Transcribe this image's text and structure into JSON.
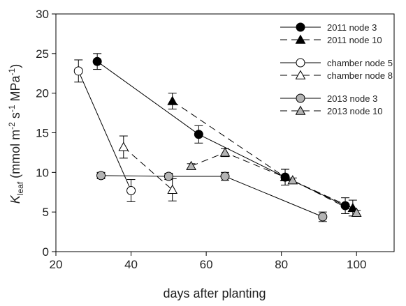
{
  "chart_data": {
    "type": "scatter",
    "title": "",
    "xlabel": "days after planting",
    "ylabel": {
      "italic": "K",
      "sub": "leaf",
      "rest": " (mmol m",
      "exp1": "-2",
      "mid1": " s",
      "exp2": "-1",
      "mid2": " MPa",
      "exp3": "-1",
      "end": ")"
    },
    "xlim": [
      20,
      110
    ],
    "ylim": [
      0,
      30
    ],
    "xticks": [
      20,
      40,
      60,
      80,
      100
    ],
    "yticks": [
      0,
      5,
      10,
      15,
      20,
      25,
      30
    ],
    "grid": false,
    "legend_position": "top-right",
    "series": [
      {
        "name": "2011 node 3",
        "marker": "circle",
        "fill": "#000000",
        "line": "solid",
        "points": [
          {
            "x": 31,
            "y": 24.0,
            "err": 1.0
          },
          {
            "x": 58,
            "y": 14.8,
            "err": 1.1
          },
          {
            "x": 81,
            "y": 9.4,
            "err": 1.0
          },
          {
            "x": 97,
            "y": 5.8,
            "err": 1.0
          }
        ]
      },
      {
        "name": "2011 node 10",
        "marker": "triangle",
        "fill": "#000000",
        "line": "dashed",
        "points": [
          {
            "x": 51,
            "y": 19.0,
            "err": 1.0
          },
          {
            "x": 81,
            "y": 9.4,
            "err": 1.0
          },
          {
            "x": 99,
            "y": 5.5,
            "err": 1.0
          }
        ]
      },
      {
        "name": "chamber node 5",
        "marker": "circle",
        "fill": "#ffffff",
        "line": "solid",
        "points": [
          {
            "x": 26,
            "y": 22.8,
            "err": 1.4
          },
          {
            "x": 40,
            "y": 7.7,
            "err": 1.4
          }
        ]
      },
      {
        "name": "chamber node 8",
        "marker": "triangle",
        "fill": "#ffffff",
        "line": "dashed",
        "points": [
          {
            "x": 38,
            "y": 13.2,
            "err": 1.4
          },
          {
            "x": 51,
            "y": 7.8,
            "err": 1.4
          }
        ]
      },
      {
        "name": "2013 node 3",
        "marker": "circle",
        "fill": "#b4b4b4",
        "line": "solid",
        "points": [
          {
            "x": 32,
            "y": 9.6,
            "err": 0.4
          },
          {
            "x": 50,
            "y": 9.5,
            "err": 0.4
          },
          {
            "x": 65,
            "y": 9.5,
            "err": 0.5
          },
          {
            "x": 91,
            "y": 4.4,
            "err": 0.6
          }
        ]
      },
      {
        "name": "2013 node 10",
        "marker": "triangle",
        "fill": "#b4b4b4",
        "line": "dashed",
        "points": [
          {
            "x": 56,
            "y": 10.8,
            "err": 0.3
          },
          {
            "x": 65,
            "y": 12.5,
            "err": 0.5
          },
          {
            "x": 83,
            "y": 9.0,
            "err": 0.3
          },
          {
            "x": 100,
            "y": 4.9,
            "err": 0.3
          }
        ]
      }
    ]
  }
}
